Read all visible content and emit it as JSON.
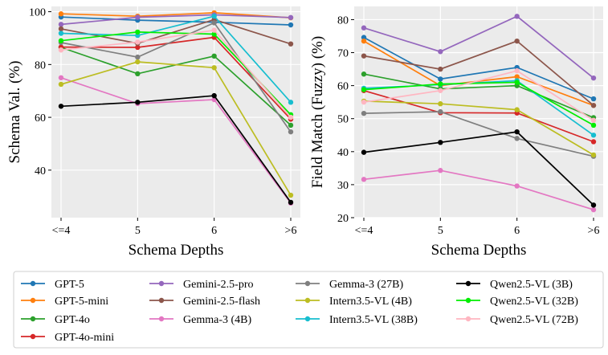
{
  "chart_data": [
    {
      "type": "line",
      "title": "",
      "xlabel": "Schema Depths",
      "ylabel": "Schema Val. (%)",
      "categories": [
        "<=4",
        "5",
        "6",
        ">6"
      ],
      "ylim": [
        22,
        102
      ],
      "yticks": [
        40,
        60,
        80,
        100
      ],
      "grid": true,
      "series": [
        {
          "name": "GPT-5",
          "color": "#1f77b4",
          "values": [
            98.0,
            96.8,
            96.0,
            95.0
          ]
        },
        {
          "name": "GPT-5-mini",
          "color": "#ff7f0e",
          "values": [
            99.2,
            98.3,
            99.6,
            97.7
          ]
        },
        {
          "name": "GPT-4o",
          "color": "#2ca02c",
          "values": [
            86.5,
            76.5,
            83.2,
            57.0
          ]
        },
        {
          "name": "GPT-4o-mini",
          "color": "#d62728",
          "values": [
            86.6,
            86.5,
            90.3,
            59.3
          ]
        },
        {
          "name": "Gemini-2.5-pro",
          "color": "#9467bd",
          "values": [
            95.2,
            97.9,
            98.8,
            97.8
          ]
        },
        {
          "name": "Gemini-2.5-flash",
          "color": "#8c564b",
          "values": [
            93.5,
            88.0,
            97.0,
            87.8
          ]
        },
        {
          "name": "Gemma-3 (4B)",
          "color": "#e377c2",
          "values": [
            75.0,
            65.2,
            66.7,
            27.5
          ]
        },
        {
          "name": "Gemma-3 (27B)",
          "color": "#7f7f7f",
          "values": [
            88.3,
            82.8,
            95.8,
            54.5
          ]
        },
        {
          "name": "Intern3.5-VL (4B)",
          "color": "#bcbd22",
          "values": [
            72.5,
            81.0,
            78.8,
            30.5
          ]
        },
        {
          "name": "Intern3.5-VL (38B)",
          "color": "#17becf",
          "values": [
            91.8,
            91.0,
            98.3,
            65.7
          ]
        },
        {
          "name": "Qwen2.5-VL (3B)",
          "color": "#000000",
          "values": [
            64.2,
            65.7,
            68.2,
            27.8
          ]
        },
        {
          "name": "Qwen2.5-VL (32B)",
          "color": "#00ee00",
          "values": [
            89.0,
            92.3,
            91.5,
            61.0
          ]
        },
        {
          "name": "Qwen2.5-VL (72B)",
          "color": "#ffb6c1",
          "values": [
            85.5,
            88.5,
            93.0,
            60.0
          ]
        }
      ]
    },
    {
      "type": "line",
      "title": "",
      "xlabel": "Schema Depths",
      "ylabel": "Field Match (Fuzzy) (%)",
      "categories": [
        "<=4",
        "5",
        "6",
        ">6"
      ],
      "ylim": [
        20,
        84
      ],
      "yticks": [
        20,
        30,
        40,
        50,
        60,
        70,
        80
      ],
      "grid": true,
      "series": [
        {
          "name": "GPT-5",
          "color": "#1f77b4",
          "values": [
            74.6,
            62.0,
            65.5,
            56.0
          ]
        },
        {
          "name": "GPT-5-mini",
          "color": "#ff7f0e",
          "values": [
            73.5,
            60.0,
            62.7,
            54.0
          ]
        },
        {
          "name": "GPT-4o",
          "color": "#2ca02c",
          "values": [
            63.5,
            59.0,
            60.0,
            50.3
          ]
        },
        {
          "name": "GPT-4o-mini",
          "color": "#d62728",
          "values": [
            58.5,
            51.8,
            51.7,
            43.0
          ]
        },
        {
          "name": "Gemini-2.5-pro",
          "color": "#9467bd",
          "values": [
            77.5,
            70.3,
            81.0,
            62.3
          ]
        },
        {
          "name": "Gemini-2.5-flash",
          "color": "#8c564b",
          "values": [
            69.0,
            65.0,
            73.5,
            54.0
          ]
        },
        {
          "name": "Gemma-3 (4B)",
          "color": "#e377c2",
          "values": [
            31.6,
            34.3,
            29.6,
            22.4
          ]
        },
        {
          "name": "Gemma-3 (27B)",
          "color": "#7f7f7f",
          "values": [
            51.6,
            52.1,
            44.0,
            38.6
          ]
        },
        {
          "name": "Intern3.5-VL (4B)",
          "color": "#bcbd22",
          "values": [
            55.3,
            54.5,
            52.7,
            39.0
          ]
        },
        {
          "name": "Intern3.5-VL (38B)",
          "color": "#17becf",
          "values": [
            59.2,
            60.3,
            61.5,
            45.0
          ]
        },
        {
          "name": "Qwen2.5-VL (3B)",
          "color": "#000000",
          "values": [
            39.8,
            42.8,
            46.0,
            23.8
          ]
        },
        {
          "name": "Qwen2.5-VL (32B)",
          "color": "#00ee00",
          "values": [
            58.8,
            60.5,
            61.0,
            48.0
          ]
        },
        {
          "name": "Qwen2.5-VL (72B)",
          "color": "#ffb6c1",
          "values": [
            55.0,
            58.5,
            64.5,
            49.5
          ]
        }
      ]
    }
  ]
}
